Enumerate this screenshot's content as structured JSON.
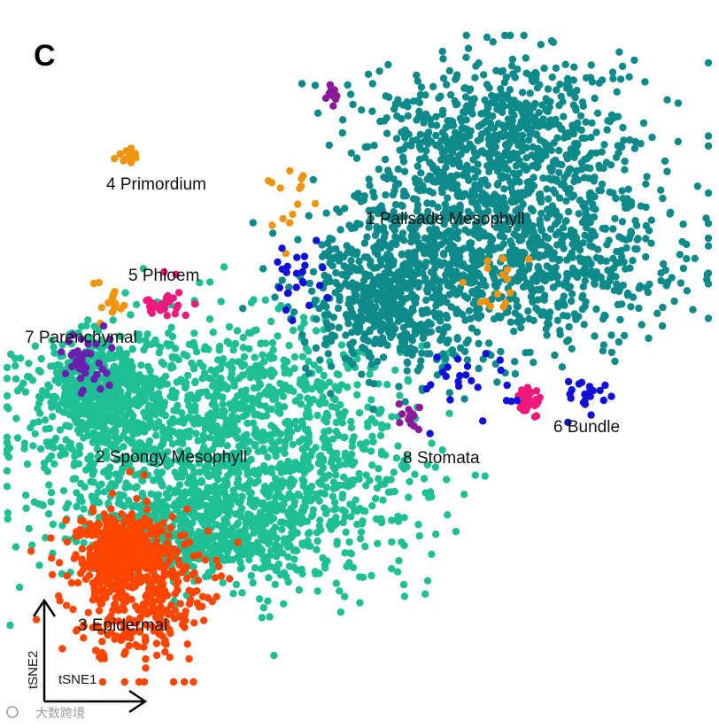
{
  "chart_data": {
    "type": "scatter",
    "panel_label": "C",
    "xlabel": "tSNE1",
    "ylabel": "tSNE2",
    "grid": false,
    "legend": "none (cluster labels placed on plot)",
    "clusters": [
      {
        "id": 1,
        "label": "1 Palisade Mesophyll",
        "color": "#0e8a8a",
        "n_points": 2200
      },
      {
        "id": 2,
        "label": "2 Spongy Mesophyll",
        "color": "#1fbf95",
        "n_points": 2600
      },
      {
        "id": 3,
        "label": "3 Epidermal",
        "color": "#ff4500",
        "n_points": 700
      },
      {
        "id": 4,
        "label": "4 Primordium",
        "color": "#f0940f",
        "n_points": 60
      },
      {
        "id": 5,
        "label": "5 Phloem",
        "color": "#f0187a",
        "n_points": 60
      },
      {
        "id": 6,
        "label": "6 Bundle",
        "color": "#1010d8",
        "n_points": 70
      },
      {
        "id": 7,
        "label": "7 Parenchymal",
        "color": "#6a1fb0",
        "n_points": 40
      },
      {
        "id": 8,
        "label": "8 Stomata",
        "color": "#8a1a9a",
        "n_points": 25
      }
    ]
  },
  "watermark": "大数跨境"
}
